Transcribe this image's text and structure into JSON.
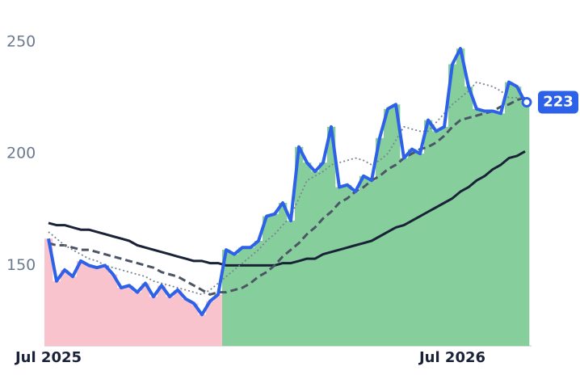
{
  "chart_data": {
    "type": "line",
    "categories": [
      "Jul 2025",
      null,
      null,
      null,
      null,
      null,
      null,
      null,
      null,
      null,
      null,
      null,
      null,
      null,
      null,
      null,
      null,
      null,
      null,
      null,
      null,
      null,
      null,
      null,
      null,
      null,
      null,
      null,
      null,
      null,
      null,
      null,
      null,
      null,
      null,
      null,
      null,
      null,
      null,
      null,
      null,
      null,
      null,
      null,
      null,
      null,
      null,
      null,
      null,
      null,
      "Jul 2026",
      null,
      null,
      null,
      null,
      null,
      null,
      null,
      null,
      null
    ],
    "series": [
      {
        "color": "#2d62e8",
        "style": "solid",
        "fill": true,
        "values": [
          162,
          143,
          148,
          145,
          152,
          150,
          149,
          150,
          146,
          140,
          141,
          138,
          142,
          136,
          141,
          136,
          139,
          135,
          133,
          128,
          134,
          137,
          157,
          155,
          158,
          158,
          161,
          172,
          173,
          178,
          170,
          203,
          196,
          192,
          196,
          212,
          185,
          186,
          183,
          190,
          188,
          207,
          220,
          222,
          198,
          202,
          200,
          215,
          210,
          212,
          240,
          247,
          230,
          220,
          219,
          219,
          218,
          232,
          230,
          223
        ]
      },
      {
        "color": "#7a8494",
        "style": "dotted",
        "values": [
          165,
          162,
          159,
          157,
          155,
          153,
          152,
          150,
          149,
          148,
          147,
          146,
          145,
          143,
          142,
          141,
          140,
          139,
          138,
          137,
          139,
          142,
          145,
          148,
          151,
          154,
          157,
          161,
          164,
          168,
          172,
          180,
          188,
          190,
          192,
          195,
          196,
          197,
          198,
          197,
          195,
          197,
          200,
          206,
          212,
          211,
          210,
          210,
          214,
          218,
          222,
          225,
          228,
          232,
          231,
          230,
          228,
          225,
          225,
          225
        ]
      },
      {
        "color": "#4b5565",
        "style": "dashed",
        "values": [
          160,
          159,
          159,
          158,
          157,
          157,
          156,
          155,
          154,
          153,
          152,
          151,
          150,
          149,
          147,
          146,
          145,
          143,
          141,
          139,
          137,
          138,
          138,
          139,
          140,
          142,
          145,
          147,
          150,
          154,
          157,
          160,
          164,
          167,
          171,
          174,
          178,
          180,
          183,
          185,
          188,
          190,
          193,
          195,
          198,
          200,
          202,
          203,
          205,
          208,
          212,
          215,
          216,
          217,
          218,
          219,
          221,
          222,
          224,
          225
        ]
      },
      {
        "color": "#1a2238",
        "style": "solid",
        "values": [
          169,
          168,
          168,
          167,
          166,
          166,
          165,
          164,
          163,
          162,
          161,
          159,
          158,
          157,
          156,
          155,
          154,
          153,
          152,
          152,
          151,
          151,
          150,
          150,
          150,
          150,
          150,
          150,
          150,
          151,
          151,
          152,
          153,
          153,
          155,
          156,
          157,
          158,
          159,
          160,
          161,
          163,
          165,
          167,
          168,
          170,
          172,
          174,
          176,
          178,
          180,
          183,
          185,
          188,
          190,
          193,
          195,
          198,
          199,
          201
        ]
      }
    ],
    "up_color": "#86cf9c",
    "down_color": "#f8c3cd",
    "ylim": [
      114,
      268
    ],
    "yticks": [
      150,
      200,
      250
    ],
    "grid": false
  }
}
